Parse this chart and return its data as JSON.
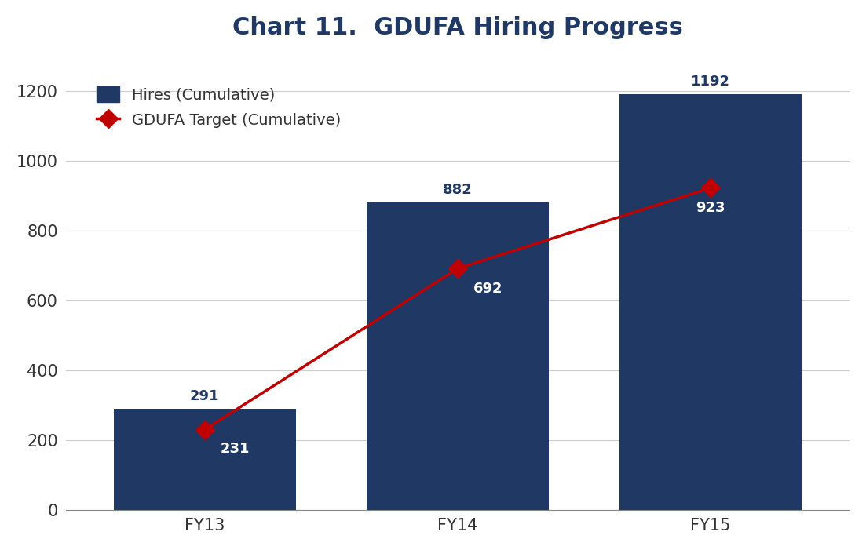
{
  "title": "Chart 11.  GDUFA Hiring Progress",
  "categories": [
    "FY 13",
    "FY 14",
    "FY 15"
  ],
  "xtick_labels": [
    "FY13",
    "FY14",
    "FY15"
  ],
  "bar_values": [
    291,
    882,
    1192
  ],
  "line_values": [
    231,
    692,
    923
  ],
  "bar_color": "#1F3864",
  "line_color": "#C00000",
  "bar_label_color_above": "#1F3864",
  "bar_label_color_inside": "#FFFFFF",
  "ylim": [
    0,
    1300
  ],
  "yticks": [
    0,
    200,
    400,
    600,
    800,
    1000,
    1200
  ],
  "legend_bar_label": "Hires (Cumulative)",
  "legend_line_label": "GDUFA Target (Cumulative)",
  "title_fontsize": 22,
  "title_color": "#1F3864",
  "tick_label_fontsize": 15,
  "bar_above_label_fontsize": 13,
  "bar_inside_label_fontsize": 13,
  "background_color": "#FFFFFF",
  "grid_color": "#CCCCCC",
  "bar_width": 0.72,
  "marker_size": 12,
  "line_width": 2.5
}
